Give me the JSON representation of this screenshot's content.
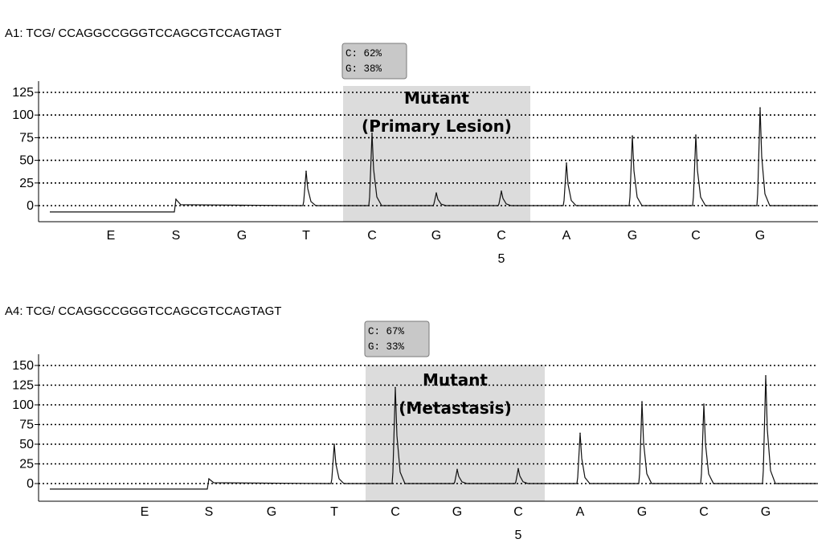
{
  "chart_data": [
    {
      "type": "line",
      "title": "A1:  TCG/ CCAGGCCGGGTCCAGCGTCCAGTAGT",
      "categories": [
        "E",
        "S",
        "G",
        "T",
        "C",
        "G",
        "C",
        "A",
        "G",
        "C",
        "G"
      ],
      "position_label": "5",
      "yticks": [
        0,
        25,
        50,
        75,
        100,
        125
      ],
      "ylim": [
        -12,
        130
      ],
      "grid": true,
      "baseline": -7,
      "series": [
        {
          "values": [
            0,
            7,
            0,
            38,
            80,
            14,
            16,
            47,
            77,
            78,
            108
          ]
        }
      ],
      "allele_box": [
        "C:  62%",
        "G:  38%"
      ],
      "annotation": [
        "Mutant",
        "(Primary Lesion)"
      ],
      "highlight_range": [
        "C",
        "C"
      ]
    },
    {
      "type": "line",
      "title": "A4:  TCG/ CCAGGCCGGGTCCAGCGTCCAGTAGT",
      "categories": [
        "E",
        "S",
        "G",
        "T",
        "C",
        "G",
        "C",
        "A",
        "G",
        "C",
        "G"
      ],
      "position_label": "5",
      "yticks": [
        0,
        25,
        50,
        75,
        100,
        125,
        150
      ],
      "ylim": [
        -14,
        155
      ],
      "grid": true,
      "baseline": -7,
      "series": [
        {
          "values": [
            0,
            6,
            0,
            50,
            122,
            18,
            19,
            64,
            104,
            101,
            137
          ]
        }
      ],
      "allele_box": [
        "C:  67%",
        "G:  33%"
      ],
      "annotation": [
        "Mutant",
        "(Metastasis)"
      ],
      "highlight_range": [
        "C",
        "C"
      ]
    }
  ]
}
